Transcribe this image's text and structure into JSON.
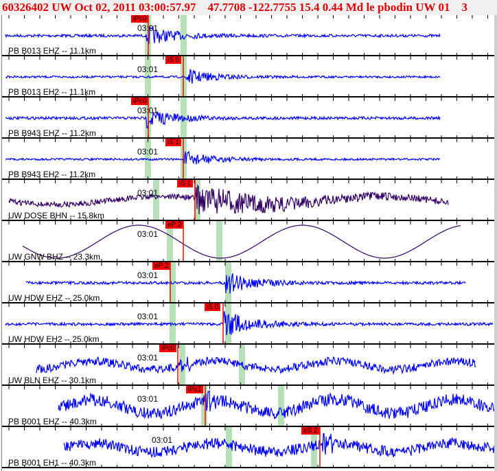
{
  "header": {
    "title": "60326402 UW Oct 02, 2011 03:00:57.97    47.7708 -122.7755 15.4 0.44 Md le pbodin UW 01    3"
  },
  "colors": {
    "trace": "#0000ff",
    "trace_dark": "#330066",
    "pick": "#ff0000",
    "pick_window": "#b8e0b8",
    "text": "#e00000"
  },
  "time_label": "03:01",
  "channels": [
    {
      "label": "PB B013 EHZ -- 11.1km",
      "pick": "iPc0"
    },
    {
      "label": "PB B013 EH2 -- 11.1km",
      "pick": "iS 0"
    },
    {
      "label": "PB B943 EHZ -- 11.2km",
      "pick": "iPc0"
    },
    {
      "label": "PB B943 EH2 -- 11.2km",
      "pick": "iS 1"
    },
    {
      "label": "UW DOSE BHN -- 15.8km",
      "pick": "iS 1"
    },
    {
      "label": "UW GNW BHZ -- 23.3km",
      "pick": "eP 2"
    },
    {
      "label": "UW HDW EHZ -- 25.0km",
      "pick": "eP 2"
    },
    {
      "label": "UW HDW EH2 -- 25.0km",
      "pick": "iS 0"
    },
    {
      "label": "UW BLN EHZ -- 30.1km",
      "pick": "iPc0"
    },
    {
      "label": "PB B001 EHZ -- 40.3km",
      "pick": "iPc1"
    },
    {
      "label": "PB B001 EH1 -- 40.3km",
      "pick": "eS 2"
    }
  ]
}
